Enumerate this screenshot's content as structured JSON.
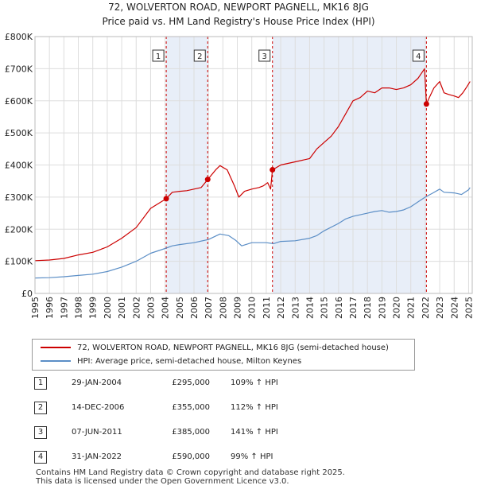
{
  "chart_data": {
    "type": "line",
    "title": "72, WOLVERTON ROAD, NEWPORT PAGNELL, MK16 8JG",
    "subtitle": "Price paid vs. HM Land Registry's House Price Index (HPI)",
    "xlim": [
      1995,
      2025.25
    ],
    "ylim": [
      0,
      800000
    ],
    "x_ticks": [
      1995,
      1996,
      1997,
      1998,
      1999,
      2000,
      2001,
      2002,
      2003,
      2004,
      2005,
      2006,
      2007,
      2008,
      2009,
      2010,
      2011,
      2012,
      2013,
      2014,
      2015,
      2016,
      2017,
      2018,
      2019,
      2020,
      2021,
      2022,
      2023,
      2024,
      2025
    ],
    "y_ticks": [
      {
        "value": 0,
        "label": "£0"
      },
      {
        "value": 100000,
        "label": "£100K"
      },
      {
        "value": 200000,
        "label": "£200K"
      },
      {
        "value": 300000,
        "label": "£300K"
      },
      {
        "value": 400000,
        "label": "£400K"
      },
      {
        "value": 500000,
        "label": "£500K"
      },
      {
        "value": 600000,
        "label": "£600K"
      },
      {
        "value": 700000,
        "label": "£700K"
      },
      {
        "value": 800000,
        "label": "£800K"
      }
    ],
    "colors": {
      "property": "#cc0000",
      "hpi": "#5b8ec6",
      "shade": "#e8eef8",
      "grid": "#dddddd",
      "vline": "#cc0000"
    },
    "shaded_periods": [
      [
        2004.08,
        2006.95
      ],
      [
        2011.43,
        2022.08
      ]
    ],
    "series": [
      {
        "name": "72, WOLVERTON ROAD, NEWPORT PAGNELL, MK16 8JG (semi-detached house)",
        "color": "#cc0000",
        "x": [
          1995,
          1996,
          1997,
          1998,
          1999,
          2000,
          2001,
          2002,
          2003,
          2004.08,
          2004.5,
          2005,
          2005.5,
          2006,
          2006.5,
          2006.95,
          2007.5,
          2007.8,
          2008.3,
          2008.8,
          2009.1,
          2009.5,
          2010,
          2010.5,
          2010.8,
          2011.1,
          2011.3,
          2011.43,
          2012,
          2013,
          2014,
          2014.5,
          2015,
          2015.5,
          2016,
          2016.5,
          2017,
          2017.5,
          2018,
          2018.5,
          2019,
          2019.5,
          2020,
          2020.5,
          2021,
          2021.5,
          2021.8,
          2021.95,
          2022.08,
          2022.3,
          2022.6,
          2023,
          2023.3,
          2023.6,
          2024,
          2024.3,
          2024.6,
          2024.9,
          2025.1
        ],
        "values": [
          102000,
          104000,
          109000,
          120000,
          128000,
          145000,
          172000,
          205000,
          265000,
          295000,
          315000,
          318000,
          320000,
          325000,
          330000,
          355000,
          385000,
          398000,
          385000,
          335000,
          300000,
          318000,
          325000,
          330000,
          335000,
          345000,
          325000,
          385000,
          400000,
          410000,
          420000,
          450000,
          470000,
          490000,
          520000,
          560000,
          600000,
          610000,
          630000,
          625000,
          640000,
          640000,
          635000,
          640000,
          650000,
          670000,
          690000,
          700000,
          590000,
          612000,
          640000,
          660000,
          625000,
          620000,
          615000,
          610000,
          625000,
          645000,
          660000
        ]
      },
      {
        "name": "HPI: Average price, semi-detached house, Milton Keynes",
        "color": "#5b8ec6",
        "x": [
          1995,
          1996,
          1997,
          1998,
          1999,
          2000,
          2001,
          2002,
          2003,
          2004,
          2004.5,
          2005,
          2006,
          2007,
          2007.8,
          2008.4,
          2008.9,
          2009.3,
          2010,
          2011,
          2011.5,
          2012,
          2013,
          2014,
          2014.5,
          2015,
          2016,
          2016.5,
          2017,
          2018,
          2018.5,
          2019,
          2019.5,
          2020,
          2020.5,
          2021,
          2021.5,
          2022,
          2022.5,
          2023,
          2023.3,
          2024,
          2024.5,
          2025,
          2025.1
        ],
        "values": [
          48000,
          49000,
          52000,
          56000,
          60000,
          68000,
          82000,
          100000,
          125000,
          140000,
          148000,
          152000,
          158000,
          168000,
          185000,
          180000,
          165000,
          148000,
          158000,
          158000,
          155000,
          162000,
          164000,
          172000,
          180000,
          195000,
          218000,
          232000,
          240000,
          250000,
          255000,
          258000,
          253000,
          255000,
          260000,
          270000,
          285000,
          300000,
          312000,
          325000,
          315000,
          313000,
          308000,
          323000,
          330000
        ]
      }
    ],
    "markers": [
      {
        "label": "1",
        "x": 2004.08,
        "price": 295000
      },
      {
        "label": "2",
        "x": 2006.95,
        "price": 355000
      },
      {
        "label": "3",
        "x": 2011.43,
        "price": 385000
      },
      {
        "label": "4",
        "x": 2022.08,
        "price": 590000
      }
    ]
  },
  "legend": {
    "property_label": "72, WOLVERTON ROAD, NEWPORT PAGNELL, MK16 8JG (semi-detached house)",
    "hpi_label": "HPI: Average price, semi-detached house, Milton Keynes"
  },
  "sales": [
    {
      "num": "1",
      "date": "29-JAN-2004",
      "price": "£295,000",
      "pct": "109% ↑ HPI"
    },
    {
      "num": "2",
      "date": "14-DEC-2006",
      "price": "£355,000",
      "pct": "112% ↑ HPI"
    },
    {
      "num": "3",
      "date": "07-JUN-2011",
      "price": "£385,000",
      "pct": "141% ↑ HPI"
    },
    {
      "num": "4",
      "date": "31-JAN-2022",
      "price": "£590,000",
      "pct": "99% ↑ HPI"
    }
  ],
  "footer": {
    "line1": "Contains HM Land Registry data © Crown copyright and database right 2025.",
    "line2": "This data is licensed under the Open Government Licence v3.0."
  }
}
